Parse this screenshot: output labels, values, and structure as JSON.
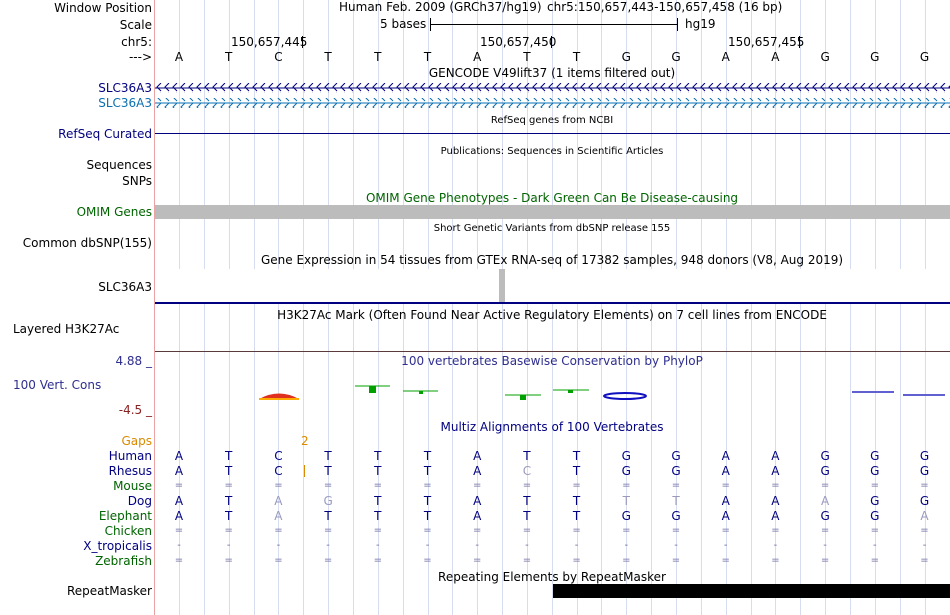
{
  "colors": {
    "navy": "#000080",
    "blue_label": "#0a6fb0",
    "omim": "#006400",
    "gaps": "#d98a00",
    "ylow": "#8b2020",
    "ybase": "#2e2e8f",
    "cons": "#2e2e8f",
    "faded": "#9a9ac0",
    "gray": "#bcbcbc"
  },
  "side_labels": {
    "window_position": "Window Position",
    "scale": "Scale",
    "chr": "chr5:",
    "arrow": "--->",
    "gencode1": "SLC36A3",
    "gencode2": "SLC36A3",
    "refseq": "RefSeq Curated",
    "sequences": "Sequences",
    "snps": "SNPs",
    "omim": "OMIM Genes",
    "dbsnp": "Common dbSNP(155)",
    "gtex": "SLC36A3",
    "h3k27ac": "Layered H3K27Ac",
    "ymax": "4.88 _",
    "vert_cons": "100 Vert. Cons",
    "ymin": "-4.5 _",
    "gaps": "Gaps",
    "human": "Human",
    "rhesus": "Rhesus",
    "mouse": "Mouse",
    "dog": "Dog",
    "elephant": "Elephant",
    "chicken": "Chicken",
    "x_tropicalis": "X_tropicalis",
    "zebrafish": "Zebrafish",
    "repeatmasker": "RepeatMasker"
  },
  "header": {
    "assembly": "Human Feb. 2009 (GRCh37/hg19)",
    "position": "chr5:150,657,443-150,657,458 (16 bp)",
    "scale_text": "5 bases",
    "scale_db": "hg19",
    "coord1": "150,657,445",
    "coord2": "150,657,450",
    "coord3": "150,657,455"
  },
  "track_titles": {
    "gencode": "GENCODE V49lift37 (1 items filtered out)",
    "refseq": "RefSeq genes from NCBI",
    "pubs": "Publications: Sequences in Scientific Articles",
    "omim": "OMIM Gene Phenotypes - Dark Green Can Be Disease-causing",
    "dbsnp": "Short Genetic Variants from dbSNP release 155",
    "gtex": "Gene Expression in 54 tissues from GTEx RNA-seq of 17382 samples, 948 donors (V8, Aug 2019)",
    "h3k27ac": "H3K27Ac Mark (Often Found Near Active Regulatory Elements) on 7 cell lines from ENCODE",
    "phylop": "100 vertebrates Basewise Conservation by PhyloP",
    "multiz": "Multiz Alignments of 100 Vertebrates",
    "repeatmasker": "Repeating Elements by RepeatMasker"
  },
  "bases": [
    "A",
    "T",
    "C",
    "T",
    "T",
    "T",
    "A",
    "T",
    "T",
    "G",
    "G",
    "A",
    "A",
    "G",
    "G",
    "G"
  ],
  "gap_count": "2",
  "alignments": {
    "human": [
      "A",
      "T",
      "C",
      "T",
      "T",
      "T",
      "A",
      "T",
      "T",
      "G",
      "G",
      "A",
      "A",
      "G",
      "G",
      "G"
    ],
    "rhesus": [
      "A",
      "T",
      "C",
      "T",
      "T",
      "T",
      "A",
      "C",
      "T",
      "G",
      "G",
      "A",
      "A",
      "G",
      "G",
      "G"
    ],
    "mouse": [
      "=",
      "=",
      "=",
      "=",
      "=",
      "=",
      "=",
      "=",
      "=",
      "=",
      "=",
      "=",
      "=",
      "=",
      "=",
      "="
    ],
    "dog": [
      "A",
      "T",
      "A",
      "G",
      "T",
      "T",
      "A",
      "T",
      "T",
      "T",
      "T",
      "A",
      "A",
      "A",
      "G",
      "G"
    ],
    "elephant": [
      "A",
      "T",
      "A",
      "T",
      "T",
      "T",
      "A",
      "T",
      "T",
      "G",
      "G",
      "A",
      "A",
      "G",
      "G",
      "A"
    ],
    "chicken": [
      "=",
      "=",
      "=",
      "=",
      "=",
      "=",
      "=",
      "=",
      "=",
      "=",
      "=",
      "=",
      "=",
      "=",
      "=",
      "="
    ],
    "x_tropicalis": [
      "-",
      "-",
      "-",
      "-",
      "-",
      "-",
      "-",
      "-",
      "-",
      "-",
      "-",
      "-",
      "-",
      "-",
      "-",
      "-"
    ],
    "zebrafish": [
      "=",
      "=",
      "=",
      "=",
      "=",
      "=",
      "=",
      "=",
      "=",
      "=",
      "=",
      "=",
      "=",
      "=",
      "=",
      "="
    ]
  },
  "faded": {
    "rhesus": [
      7
    ],
    "dog": [
      2,
      3,
      9,
      10,
      13
    ],
    "elephant": [
      2,
      15
    ]
  }
}
